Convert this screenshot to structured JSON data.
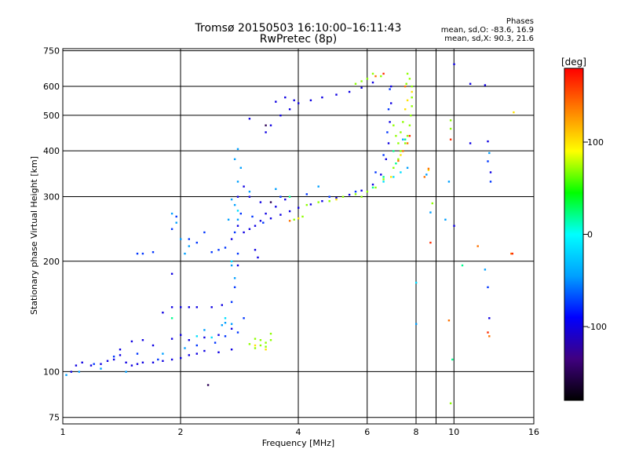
{
  "chart_data": {
    "type": "scatter",
    "title": "Tromsø 20150503 16:10:00–16:11:43",
    "subtitle": "RwPretec (8p)",
    "xlabel": "Frequency [MHz]",
    "ylabel": "Stationary phase Virtual Height [km]",
    "x_scale": "log",
    "y_scale": "log",
    "xlim": [
      1,
      16
    ],
    "ylim": [
      72,
      760
    ],
    "x_ticks": [
      1,
      2,
      4,
      6,
      8,
      10,
      16
    ],
    "x_tick_labels": [
      "1",
      "2",
      "4",
      "6",
      "8",
      "10",
      "16"
    ],
    "y_ticks": [
      75,
      100,
      200,
      300,
      400,
      500,
      600,
      750
    ],
    "y_tick_labels": [
      "75",
      "100",
      "200",
      "300",
      "400",
      "500",
      "600",
      "750"
    ],
    "x_grid_extra": [
      9
    ],
    "grid": true,
    "phase_stats": {
      "heading": "Phases",
      "line_o": "mean, sd,O: -83.6, 16.9",
      "line_x": "mean, sd,X: 90.3, 21.6"
    },
    "colorbar": {
      "label": "[deg]",
      "min": -180,
      "max": 180,
      "ticks": [
        100,
        0,
        -100
      ],
      "tick_labels": [
        "100",
        "0",
        "-100"
      ],
      "colors": [
        "#000000",
        "#400080",
        "#0000ff",
        "#00a0ff",
        "#00ffff",
        "#00ff00",
        "#ffff00",
        "#ff8000",
        "#ff0000"
      ]
    },
    "series": [
      {
        "phase": -100,
        "points": [
          [
            1.05,
            100
          ],
          [
            1.08,
            104
          ],
          [
            1.12,
            106
          ],
          [
            1.18,
            104
          ],
          [
            1.25,
            105
          ],
          [
            1.3,
            107
          ],
          [
            1.35,
            108
          ],
          [
            1.4,
            111
          ],
          [
            1.45,
            106
          ],
          [
            1.5,
            104
          ],
          [
            1.55,
            105
          ],
          [
            1.6,
            106
          ],
          [
            1.7,
            106
          ],
          [
            1.8,
            107
          ],
          [
            1.9,
            108
          ],
          [
            2.0,
            109
          ],
          [
            2.1,
            111
          ],
          [
            2.2,
            112
          ],
          [
            2.3,
            114
          ],
          [
            2.5,
            113
          ],
          [
            2.7,
            115
          ],
          [
            1.4,
            115
          ],
          [
            1.5,
            121
          ],
          [
            1.6,
            122
          ],
          [
            1.7,
            118
          ],
          [
            1.9,
            123
          ],
          [
            2.0,
            126
          ],
          [
            2.1,
            122
          ],
          [
            2.3,
            124
          ],
          [
            2.5,
            126
          ],
          [
            2.7,
            131
          ],
          [
            1.8,
            145
          ],
          [
            1.9,
            150
          ],
          [
            2.0,
            150
          ],
          [
            2.1,
            150
          ],
          [
            2.2,
            150
          ],
          [
            2.4,
            150
          ],
          [
            2.55,
            152
          ],
          [
            1.9,
            185
          ],
          [
            2.8,
            195
          ],
          [
            2.7,
            230
          ],
          [
            2.8,
            250
          ],
          [
            2.9,
            240
          ],
          [
            3.0,
            245
          ],
          [
            3.1,
            250
          ],
          [
            3.2,
            258
          ],
          [
            3.4,
            262
          ],
          [
            3.6,
            268
          ],
          [
            3.8,
            274
          ],
          [
            4.0,
            280
          ],
          [
            4.3,
            286
          ],
          [
            4.6,
            292
          ],
          [
            5.0,
            298
          ],
          [
            5.4,
            304
          ],
          [
            5.8,
            312
          ],
          [
            6.2,
            324
          ],
          [
            6.5,
            345
          ],
          [
            6.7,
            380
          ],
          [
            6.8,
            420
          ],
          [
            6.85,
            480
          ],
          [
            6.9,
            540
          ],
          [
            6.9,
            600
          ],
          [
            2.8,
            300
          ],
          [
            2.9,
            320
          ],
          [
            3.0,
            300
          ],
          [
            3.2,
            290
          ],
          [
            3.3,
            270
          ],
          [
            3.5,
            282
          ],
          [
            3.7,
            295
          ],
          [
            3.1,
            215
          ],
          [
            3.15,
            205
          ],
          [
            3.3,
            450
          ],
          [
            3.4,
            470
          ],
          [
            3.6,
            500
          ],
          [
            3.8,
            520
          ],
          [
            4.0,
            540
          ],
          [
            4.3,
            550
          ],
          [
            4.6,
            560
          ],
          [
            5.0,
            570
          ],
          [
            5.4,
            580
          ],
          [
            5.8,
            595
          ],
          [
            6.2,
            615
          ],
          [
            3.0,
            490
          ],
          [
            3.5,
            545
          ],
          [
            3.7,
            560
          ],
          [
            3.9,
            550
          ],
          [
            10.0,
            250
          ],
          [
            11.0,
            610
          ],
          [
            12.0,
            605
          ],
          [
            12.2,
            425
          ],
          [
            10.0,
            690
          ],
          [
            12.4,
            350
          ],
          [
            12.3,
            140
          ],
          [
            11.0,
            420
          ]
        ]
      },
      {
        "phase": -75,
        "points": [
          [
            1.2,
            105
          ],
          [
            1.35,
            110
          ],
          [
            1.55,
            112
          ],
          [
            1.75,
            108
          ],
          [
            2.2,
            118
          ],
          [
            2.45,
            120
          ],
          [
            2.6,
            125
          ],
          [
            2.8,
            128
          ],
          [
            2.9,
            140
          ],
          [
            2.7,
            155
          ],
          [
            2.75,
            170
          ],
          [
            2.8,
            210
          ],
          [
            2.2,
            225
          ],
          [
            2.1,
            230
          ],
          [
            2.3,
            240
          ],
          [
            2.75,
            240
          ],
          [
            2.85,
            270
          ],
          [
            3.05,
            265
          ],
          [
            3.25,
            255
          ],
          [
            3.6,
            300
          ],
          [
            4.2,
            305
          ],
          [
            4.8,
            300
          ],
          [
            5.6,
            310
          ],
          [
            6.3,
            350
          ],
          [
            6.6,
            390
          ],
          [
            6.75,
            450
          ],
          [
            6.8,
            520
          ],
          [
            6.85,
            590
          ],
          [
            1.6,
            210
          ],
          [
            1.7,
            212
          ],
          [
            1.55,
            210
          ],
          [
            2.4,
            212
          ],
          [
            2.5,
            215
          ],
          [
            1.9,
            245
          ],
          [
            1.95,
            265
          ],
          [
            2.6,
            218
          ],
          [
            12.2,
            375
          ],
          [
            12.4,
            330
          ],
          [
            12.2,
            170
          ]
        ]
      },
      {
        "phase": -45,
        "points": [
          [
            1.02,
            98
          ],
          [
            1.1,
            100
          ],
          [
            1.25,
            102
          ],
          [
            1.45,
            100
          ],
          [
            1.8,
            112
          ],
          [
            2.05,
            116
          ],
          [
            2.3,
            130
          ],
          [
            2.55,
            134
          ],
          [
            2.7,
            135
          ],
          [
            2.8,
            260
          ],
          [
            2.75,
            285
          ],
          [
            2.8,
            330
          ],
          [
            2.75,
            380
          ],
          [
            2.85,
            360
          ],
          [
            2.8,
            405
          ],
          [
            2.7,
            295
          ],
          [
            2.65,
            260
          ],
          [
            1.9,
            270
          ],
          [
            1.95,
            255
          ],
          [
            2.0,
            230
          ],
          [
            2.1,
            220
          ],
          [
            2.05,
            210
          ],
          [
            2.7,
            195
          ],
          [
            2.75,
            180
          ],
          [
            3.0,
            310
          ],
          [
            3.5,
            315
          ],
          [
            4.5,
            320
          ],
          [
            7.4,
            430
          ],
          [
            7.6,
            360
          ],
          [
            8.5,
            345
          ],
          [
            8.7,
            272
          ],
          [
            9.7,
            330
          ],
          [
            9.5,
            260
          ],
          [
            12.3,
            395
          ],
          [
            8.0,
            135
          ],
          [
            12.0,
            190
          ],
          [
            2.6,
            136
          ]
        ]
      },
      {
        "phase": -15,
        "points": [
          [
            2.2,
            125
          ],
          [
            2.4,
            124
          ],
          [
            2.6,
            140
          ],
          [
            2.7,
            200
          ],
          [
            2.8,
            275
          ],
          [
            6.6,
            330
          ],
          [
            7.0,
            340
          ],
          [
            7.3,
            350
          ],
          [
            8.0,
            175
          ]
        ]
      },
      {
        "phase": 20,
        "points": [
          [
            1.9,
            140
          ],
          [
            3.8,
            300
          ],
          [
            6.2,
            318
          ],
          [
            6.6,
            340
          ],
          [
            7.1,
            370
          ],
          [
            7.0,
            400
          ],
          [
            7.5,
            430
          ],
          [
            9.9,
            108
          ],
          [
            10.5,
            195
          ]
        ]
      },
      {
        "phase": 70,
        "points": [
          [
            3.1,
            116
          ],
          [
            3.2,
            118
          ],
          [
            3.3,
            117
          ],
          [
            3.3,
            120
          ],
          [
            3.4,
            122
          ],
          [
            3.4,
            127
          ],
          [
            3.2,
            122
          ],
          [
            3.0,
            119
          ],
          [
            3.1,
            123
          ],
          [
            5.8,
            300
          ],
          [
            6.0,
            310
          ],
          [
            6.3,
            318
          ],
          [
            6.6,
            335
          ],
          [
            7.0,
            360
          ],
          [
            7.2,
            380
          ],
          [
            7.3,
            400
          ],
          [
            7.5,
            420
          ],
          [
            7.6,
            440
          ],
          [
            7.7,
            470
          ],
          [
            7.75,
            500
          ],
          [
            7.8,
            530
          ],
          [
            7.8,
            560
          ],
          [
            7.8,
            600
          ],
          [
            7.7,
            630
          ],
          [
            7.55,
            610
          ],
          [
            7.6,
            650
          ],
          [
            7.4,
            480
          ],
          [
            7.3,
            450
          ],
          [
            7.2,
            420
          ],
          [
            5.6,
            610
          ],
          [
            5.8,
            620
          ],
          [
            6.2,
            650
          ],
          [
            6.5,
            640
          ],
          [
            6.0,
            630
          ],
          [
            4.2,
            285
          ],
          [
            4.5,
            290
          ],
          [
            4.8,
            292
          ],
          [
            5.2,
            300
          ],
          [
            5.6,
            305
          ],
          [
            3.9,
            260
          ],
          [
            4.1,
            265
          ],
          [
            9.8,
            485
          ],
          [
            9.8,
            460
          ],
          [
            8.8,
            288
          ],
          [
            9.8,
            82
          ],
          [
            7.0,
            470
          ],
          [
            7.1,
            440
          ]
        ]
      },
      {
        "phase": 100,
        "points": [
          [
            3.3,
            115
          ],
          [
            3.1,
            118
          ],
          [
            7.6,
            550
          ],
          [
            7.5,
            520
          ],
          [
            6.9,
            340
          ],
          [
            4.0,
            262
          ],
          [
            5.0,
            295
          ],
          [
            7.8,
            580
          ],
          [
            8.6,
            355
          ],
          [
            7.3,
            390
          ],
          [
            14.2,
            510
          ]
        ]
      },
      {
        "phase": 140,
        "points": [
          [
            3.8,
            258
          ],
          [
            6.3,
            640
          ],
          [
            7.4,
            400
          ],
          [
            7.6,
            420
          ],
          [
            8.6,
            358
          ],
          [
            7.2,
            376
          ],
          [
            11.5,
            220
          ],
          [
            12.3,
            125
          ],
          [
            9.7,
            138
          ],
          [
            7.5,
            600
          ],
          [
            14.0,
            210
          ],
          [
            8.4,
            340
          ]
        ]
      },
      {
        "phase": 165,
        "points": [
          [
            9.8,
            430
          ],
          [
            12.2,
            128
          ],
          [
            7.7,
            440
          ],
          [
            6.6,
            650
          ],
          [
            8.7,
            225
          ],
          [
            14.1,
            210
          ]
        ]
      },
      {
        "phase": -150,
        "points": [
          [
            2.35,
            92
          ],
          [
            3.4,
            290
          ],
          [
            3.3,
            470
          ]
        ]
      }
    ]
  }
}
